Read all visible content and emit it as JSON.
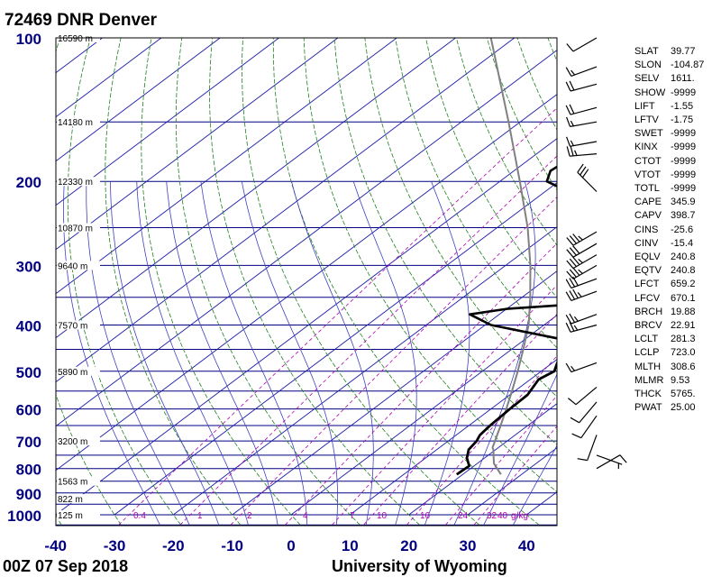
{
  "header": {
    "title": "72469 DNR Denver",
    "time": "00Z 07 Sep 2018",
    "source": "University of Wyoming"
  },
  "chart_data": {
    "type": "skew-t log-p sounding",
    "xlim": [
      -40,
      45
    ],
    "ylim": [
      1000,
      100
    ],
    "y_scale": "log",
    "temperature_ticks": [
      -40,
      -30,
      -20,
      -10,
      0,
      10,
      20,
      30,
      40
    ],
    "pressure_ticks": [
      100,
      200,
      300,
      400,
      500,
      600,
      700,
      800,
      900,
      1000
    ],
    "height_labels": [
      {
        "p": 100,
        "text": "16590 m"
      },
      {
        "p": 150,
        "text": "14180 m"
      },
      {
        "p": 200,
        "text": "12330 m"
      },
      {
        "p": 250,
        "text": "10870 m"
      },
      {
        "p": 300,
        "text": "9640 m"
      },
      {
        "p": 400,
        "text": "7570 m"
      },
      {
        "p": 500,
        "text": "5890 m"
      },
      {
        "p": 700,
        "text": "3200 m"
      },
      {
        "p": 850,
        "text": "1563 m"
      },
      {
        "p": 925,
        "text": "822 m"
      },
      {
        "p": 1000,
        "text": "125 m"
      }
    ],
    "mixing_ratio_labels": [
      "0.4",
      "1",
      "2",
      "4",
      "7",
      "10",
      "16",
      "24",
      "32",
      "40",
      "g/kg"
    ],
    "series": [
      {
        "points": [
          [
            823,
            19.0
          ],
          [
            790,
            19.2
          ],
          [
            760,
            17.0
          ],
          [
            730,
            15.4
          ],
          [
            700,
            14.8
          ],
          [
            680,
            14.0
          ],
          [
            650,
            13.6
          ],
          [
            600,
            13.2
          ],
          [
            560,
            13.0
          ],
          [
            520,
            11.4
          ],
          [
            500,
            12.2
          ],
          [
            480,
            10.8
          ],
          [
            460,
            11.4
          ],
          [
            450,
            8.8
          ],
          [
            440,
            8.2
          ],
          [
            430,
            7.0
          ],
          [
            400,
            -9.0
          ],
          [
            380,
            -15.0
          ],
          [
            370,
            -10.0
          ],
          [
            360,
            3.0
          ],
          [
            355,
            -1.0
          ],
          [
            350,
            4.0
          ],
          [
            340,
            1.0
          ],
          [
            320,
            -0.6
          ],
          [
            300,
            -3.2
          ],
          [
            290,
            -2.2
          ],
          [
            270,
            -7.2
          ],
          [
            250,
            -8.0
          ],
          [
            240,
            -10.0
          ],
          [
            230,
            -19.0
          ],
          [
            210,
            -26.0
          ],
          [
            200,
            -32.0
          ],
          [
            190,
            -33.8
          ],
          [
            175,
            -33.0
          ],
          [
            160,
            -37.0
          ],
          [
            150,
            -39.0
          ],
          [
            140,
            -41.6
          ],
          [
            130,
            -45.0
          ],
          [
            115,
            -49.0
          ],
          [
            105,
            -53.0
          ],
          [
            100,
            -56.0
          ]
        ]
      },
      {
        "points": [
          [
            823,
            19.0
          ],
          [
            790,
            19.2
          ],
          [
            760,
            17.0
          ],
          [
            730,
            15.4
          ],
          [
            700,
            14.8
          ],
          [
            680,
            14.0
          ],
          [
            650,
            13.6
          ],
          [
            600,
            13.2
          ],
          [
            560,
            13.0
          ],
          [
            520,
            11.4
          ],
          [
            500,
            12.2
          ],
          [
            480,
            10.8
          ],
          [
            460,
            11.4
          ],
          [
            450,
            8.8
          ],
          [
            440,
            8.2
          ],
          [
            430,
            7.0
          ],
          [
            400,
            5.8
          ],
          [
            380,
            4.2
          ],
          [
            360,
            2.2
          ],
          [
            350,
            0.5
          ],
          [
            340,
            -0.8
          ],
          [
            320,
            -3.8
          ],
          [
            300,
            -7.0
          ],
          [
            280,
            -10.8
          ],
          [
            260,
            -15.0
          ],
          [
            250,
            -17.2
          ],
          [
            240,
            -19.5
          ],
          [
            230,
            -20.0
          ],
          [
            220,
            -20.5
          ],
          [
            200,
            -22.6
          ],
          [
            190,
            -23.8
          ],
          [
            185,
            -26.2
          ],
          [
            180,
            -30.5
          ],
          [
            170,
            -31.8
          ],
          [
            160,
            -33.0
          ],
          [
            150,
            -36.0
          ],
          [
            140,
            -39.0
          ],
          [
            130,
            -42.0
          ],
          [
            120,
            -43.8
          ],
          [
            115,
            -46.0
          ],
          [
            105,
            -46.5
          ],
          [
            100,
            -49.0
          ]
        ]
      }
    ],
    "parcel": {
      "points": [
        [
          823,
          26.5
        ],
        [
          780,
          22.8
        ],
        [
          730,
          19.6
        ],
        [
          723,
          19.0
        ],
        [
          700,
          17.9
        ],
        [
          650,
          15.4
        ],
        [
          600,
          12.6
        ],
        [
          550,
          9.5
        ],
        [
          500,
          6.0
        ],
        [
          450,
          2.0
        ],
        [
          400,
          -2.6
        ],
        [
          350,
          -8.6
        ],
        [
          300,
          -15.8
        ],
        [
          250,
          -24.8
        ],
        [
          200,
          -36.6
        ],
        [
          150,
          -52.0
        ],
        [
          100,
          -74.0
        ]
      ]
    },
    "wind_barbs": [
      {
        "p": 100,
        "dir": 240,
        "spd": 10
      },
      {
        "p": 115,
        "dir": 250,
        "spd": 15
      },
      {
        "p": 125,
        "dir": 255,
        "spd": 20
      },
      {
        "p": 140,
        "dir": 255,
        "spd": 20
      },
      {
        "p": 150,
        "dir": 260,
        "spd": 15
      },
      {
        "p": 165,
        "dir": 260,
        "spd": 15
      },
      {
        "p": 175,
        "dir": 265,
        "spd": 25
      },
      {
        "p": 210,
        "dir": 315,
        "spd": 30
      },
      {
        "p": 255,
        "dir": 240,
        "spd": 35
      },
      {
        "p": 270,
        "dir": 240,
        "spd": 30
      },
      {
        "p": 285,
        "dir": 240,
        "spd": 35
      },
      {
        "p": 300,
        "dir": 240,
        "spd": 35
      },
      {
        "p": 320,
        "dir": 250,
        "spd": 30
      },
      {
        "p": 340,
        "dir": 250,
        "spd": 35
      },
      {
        "p": 380,
        "dir": 250,
        "spd": 25
      },
      {
        "p": 400,
        "dir": 255,
        "spd": 25
      },
      {
        "p": 480,
        "dir": 250,
        "spd": 15
      },
      {
        "p": 540,
        "dir": 230,
        "spd": 10
      },
      {
        "p": 580,
        "dir": 220,
        "spd": 10
      },
      {
        "p": 620,
        "dir": 215,
        "spd": 10
      },
      {
        "p": 680,
        "dir": 200,
        "spd": 10
      },
      {
        "p": 750,
        "dir": 110,
        "spd": 5
      },
      {
        "p": 800,
        "dir": 60,
        "spd": 10
      }
    ],
    "colors": {
      "isobar": "#000080",
      "isotherm": "#1a1aa8",
      "dry_adiabat": "#208020",
      "moist_adiabat": "#4040c0",
      "mixing_ratio": "#b000b0",
      "sounding": "#000000",
      "parcel": "#808080"
    }
  },
  "stats": [
    {
      "name": "SLAT",
      "value": "39.77"
    },
    {
      "name": "SLON",
      "value": "-104.87"
    },
    {
      "name": "SELV",
      "value": "1611."
    },
    {
      "name": "SHOW",
      "value": "-9999"
    },
    {
      "name": "LIFT",
      "value": "-1.55"
    },
    {
      "name": "LFTV",
      "value": "-1.75"
    },
    {
      "name": "SWET",
      "value": "-9999"
    },
    {
      "name": "KINX",
      "value": "-9999"
    },
    {
      "name": "CTOT",
      "value": "-9999"
    },
    {
      "name": "VTOT",
      "value": "-9999"
    },
    {
      "name": "TOTL",
      "value": "-9999"
    },
    {
      "name": "CAPE",
      "value": "345.9"
    },
    {
      "name": "CAPV",
      "value": "398.7"
    },
    {
      "name": "CINS",
      "value": "-25.6"
    },
    {
      "name": "CINV",
      "value": "-15.4"
    },
    {
      "name": "EQLV",
      "value": "240.8"
    },
    {
      "name": "EQTV",
      "value": "240.8"
    },
    {
      "name": "LFCT",
      "value": "659.2"
    },
    {
      "name": "LFCV",
      "value": "670.1"
    },
    {
      "name": "BRCH",
      "value": "19.88"
    },
    {
      "name": "BRCV",
      "value": "22.91"
    },
    {
      "name": "LCLT",
      "value": "281.3"
    },
    {
      "name": "LCLP",
      "value": "723.0"
    },
    {
      "name": "MLTH",
      "value": "308.6"
    },
    {
      "name": "MLMR",
      "value": "9.53"
    },
    {
      "name": "THCK",
      "value": "5765."
    },
    {
      "name": "PWAT",
      "value": "25.00"
    }
  ]
}
